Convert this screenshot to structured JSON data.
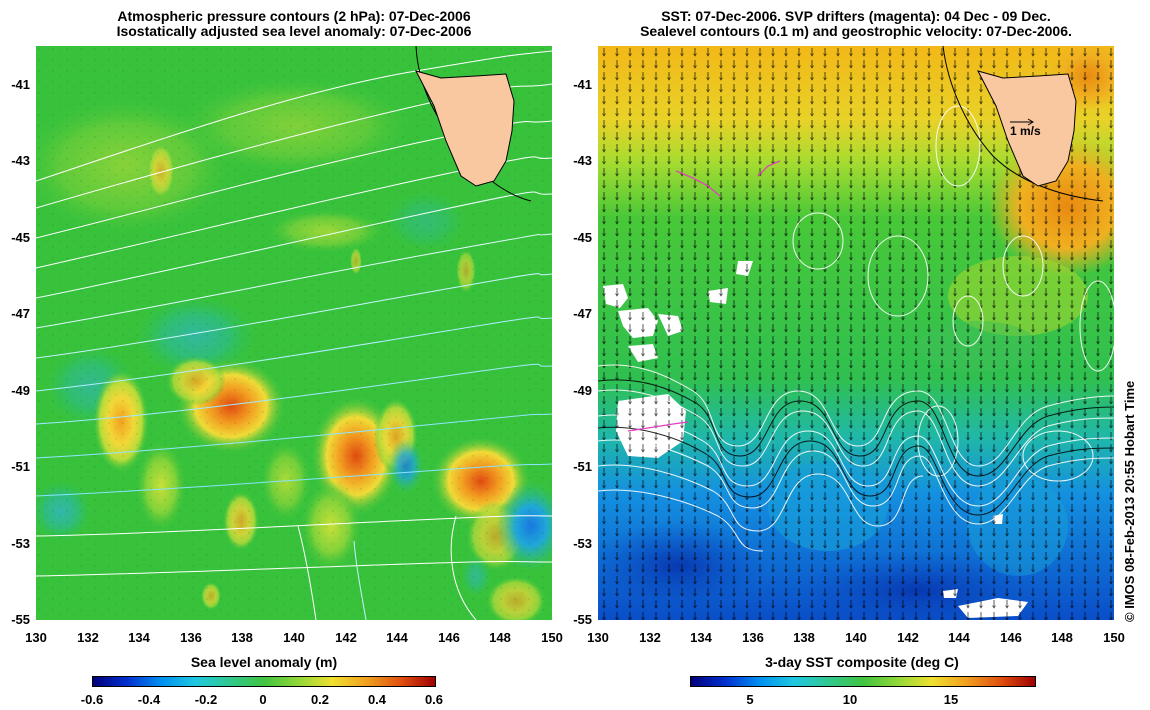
{
  "left_panel": {
    "title_line1": "Atmospheric pressure contours (2 hPa): 07-Dec-2006",
    "title_line2": "Isostatically adjusted sea level anomaly: 07-Dec-2006",
    "colorbar_title": "Sea level anomaly (m)",
    "colorbar_ticks": [
      "-0.6",
      "-0.4",
      "-0.2",
      "0",
      "0.2",
      "0.4",
      "0.6"
    ]
  },
  "right_panel": {
    "title_line1": "SST: 07-Dec-2006. SVP drifters (magenta): 04 Dec - 09 Dec.",
    "title_line2": "Sealevel contours (0.1 m) and geostrophic velocity: 07-Dec-2006.",
    "velocity_scale_label": "1 m/s",
    "colorbar_title": "3-day SST composite (deg C)",
    "colorbar_ticks": [
      "5",
      "10",
      "15"
    ]
  },
  "axes": {
    "x_ticks": [
      "130",
      "132",
      "134",
      "136",
      "138",
      "140",
      "142",
      "144",
      "146",
      "148",
      "150"
    ],
    "y_ticks": [
      "-41",
      "-43",
      "-45",
      "-47",
      "-49",
      "-51",
      "-53",
      "-55"
    ]
  },
  "credit": "© IMOS 08-Feb-2013 20:55 Hobart Time",
  "colors": {
    "land": "#f9c8a0",
    "anomaly_base": "#33c43a",
    "sst_cold": "#1060e0",
    "sst_warm": "#f0a000",
    "pressure_contour": "#ffffff",
    "drifter": "#e040c0"
  }
}
